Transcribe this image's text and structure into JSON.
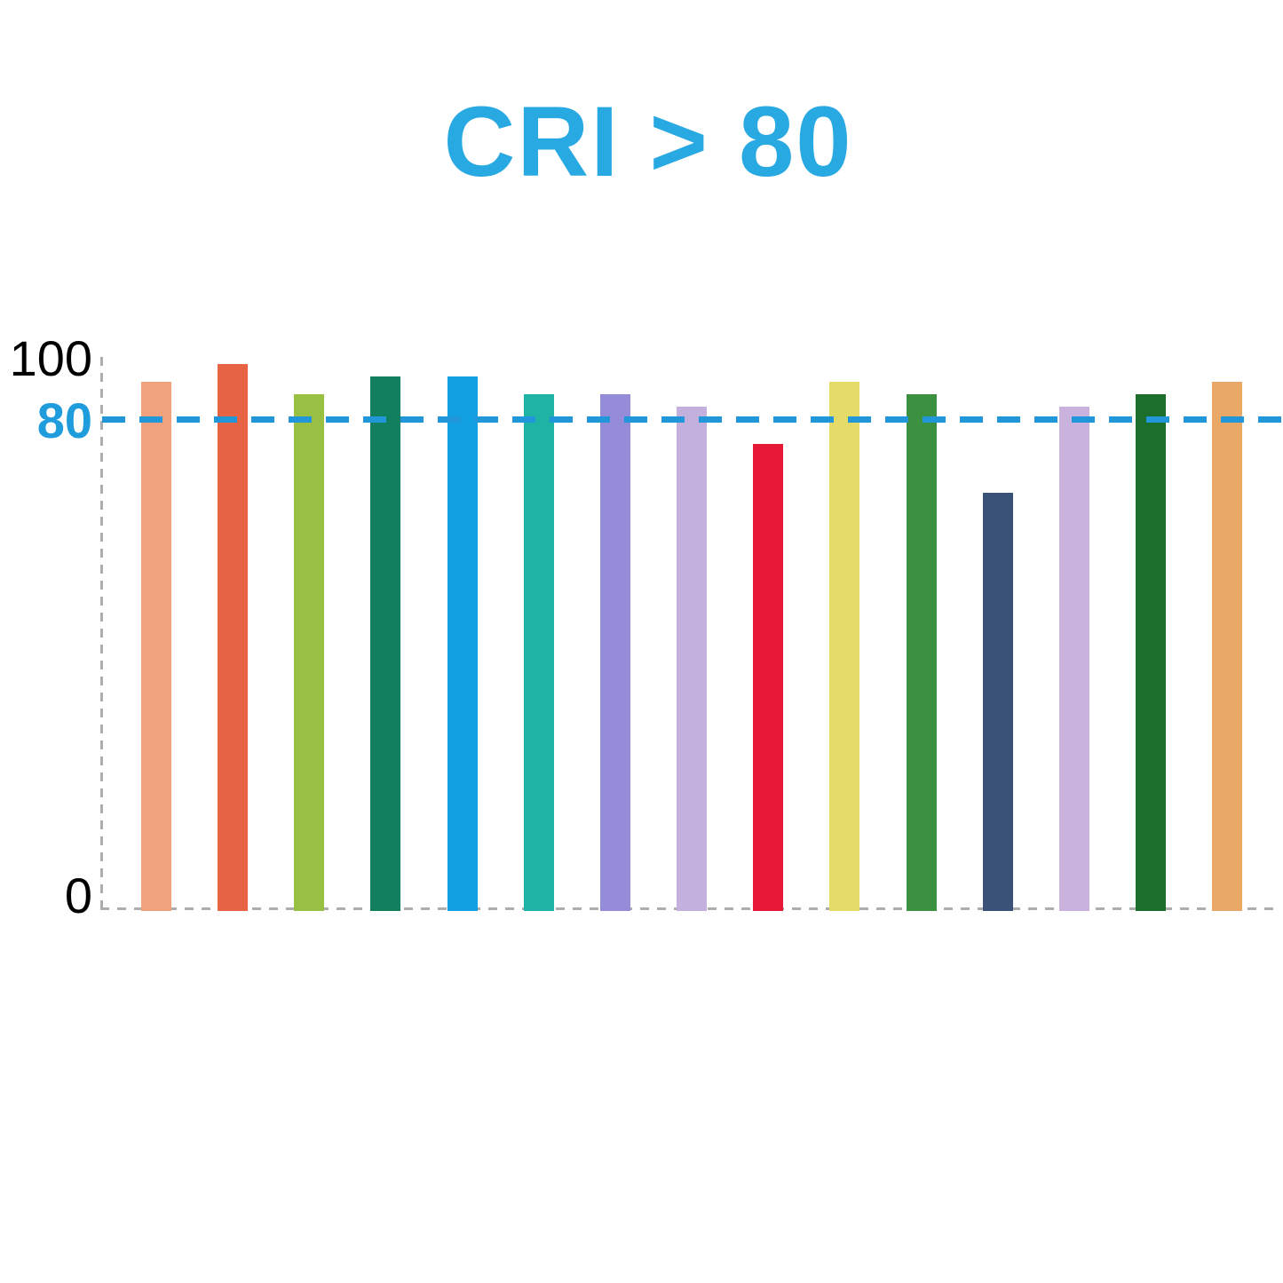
{
  "title": {
    "text": "CRI > 80",
    "color": "#29A9E2"
  },
  "axis": {
    "y_labels": [
      {
        "text": "100",
        "color": "#000000"
      },
      {
        "text": "80",
        "color": "#1E9CDC"
      },
      {
        "text": "0",
        "color": "#000000"
      }
    ]
  },
  "threshold_line": {
    "value": 80,
    "color": "#2196D8",
    "style": "dashed"
  },
  "chart_data": {
    "type": "bar",
    "title": "CRI > 80",
    "xlabel": "",
    "ylabel": "",
    "ylim": [
      0,
      100
    ],
    "yticks": [
      0,
      80,
      100
    ],
    "grid": false,
    "legend": false,
    "threshold": 80,
    "note": "15 unlabeled color bars; dashed blue reference line at CRI 80",
    "categories": [
      "salmon",
      "orange-red",
      "yellow-green",
      "sea-green",
      "sky-blue",
      "teal",
      "purple",
      "light-lavender",
      "crimson",
      "yellow",
      "green",
      "navy",
      "lavender",
      "dark-green",
      "tan"
    ],
    "values": [
      86,
      89,
      84,
      87,
      87,
      84,
      84,
      82,
      76,
      86,
      84,
      68,
      82,
      84,
      86
    ],
    "colors": [
      "#F0A17E",
      "#E66443",
      "#9AC043",
      "#12805F",
      "#12A0E3",
      "#1EB3A5",
      "#948CD8",
      "#C3B0DC",
      "#E61937",
      "#E5DB68",
      "#3C9140",
      "#3A5178",
      "#C9B3DE",
      "#1C6E2C",
      "#E9A866"
    ]
  }
}
